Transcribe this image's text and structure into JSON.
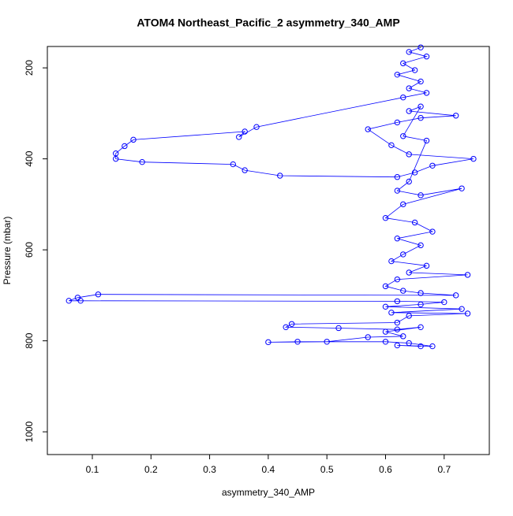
{
  "chart_data": {
    "type": "line",
    "title": "ATOM4 Northeast_Pacific_2 asymmetry_340_AMP",
    "xlabel": "asymmetry_340_AMP",
    "ylabel": "Pressure (mbar)",
    "xlim": [
      0.0233,
      0.777
    ],
    "ylim": [
      1050,
      153
    ],
    "xticks": [
      0.1,
      0.2,
      0.3,
      0.4,
      0.5,
      0.6,
      0.7
    ],
    "yticks": [
      200,
      400,
      600,
      800,
      1000
    ],
    "series": [
      {
        "color": "#0000ff",
        "x": [
          0.66,
          0.64,
          0.67,
          0.63,
          0.65,
          0.62,
          0.66,
          0.64,
          0.67,
          0.63,
          0.38,
          0.35,
          0.36,
          0.17,
          0.155,
          0.14,
          0.14,
          0.185,
          0.34,
          0.36,
          0.42,
          0.62,
          0.65,
          0.68,
          0.75,
          0.64,
          0.61,
          0.57,
          0.62,
          0.66,
          0.72,
          0.64,
          0.66,
          0.63,
          0.67,
          0.64,
          0.62,
          0.66,
          0.73,
          0.63,
          0.6,
          0.65,
          0.68,
          0.62,
          0.66,
          0.63,
          0.61,
          0.67,
          0.64,
          0.74,
          0.62,
          0.6,
          0.63,
          0.66,
          0.72,
          0.11,
          0.075,
          0.06,
          0.08,
          0.62,
          0.7,
          0.66,
          0.6,
          0.73,
          0.61,
          0.74,
          0.64,
          0.62,
          0.44,
          0.43,
          0.52,
          0.62,
          0.66,
          0.6,
          0.63,
          0.57,
          0.5,
          0.4,
          0.45,
          0.6,
          0.64,
          0.68,
          0.62,
          0.66
        ],
        "values": [
          155,
          165,
          175,
          190,
          205,
          215,
          230,
          245,
          255,
          265,
          330,
          352,
          340,
          358,
          372,
          388,
          400,
          407,
          412,
          425,
          437,
          440,
          430,
          415,
          400,
          390,
          370,
          335,
          320,
          310,
          305,
          295,
          285,
          350,
          360,
          450,
          470,
          480,
          465,
          500,
          530,
          540,
          560,
          575,
          590,
          610,
          625,
          635,
          650,
          655,
          665,
          680,
          690,
          695,
          700,
          698,
          705,
          712,
          712,
          713,
          715,
          720,
          725,
          730,
          738,
          740,
          745,
          760,
          763,
          770,
          772,
          775,
          770,
          780,
          790,
          792,
          802,
          803,
          802,
          802,
          805,
          812,
          810,
          812
        ]
      }
    ]
  }
}
